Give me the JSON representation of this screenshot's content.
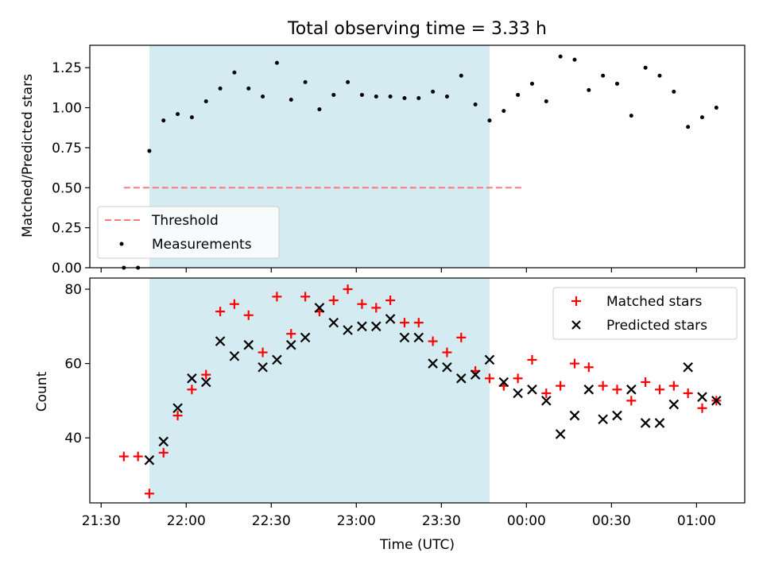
{
  "colors": {
    "shade": "#d4ebf1",
    "threshold": "#ff7b7b",
    "measurement": "#000000",
    "matched": "#ff0000",
    "predicted": "#000000"
  },
  "chart_data": [
    {
      "type": "scatter",
      "title": "Total observing time = 3.33 h",
      "xlabel": "",
      "ylabel": "Matched/Predicted stars",
      "ylim": [
        0,
        1.39
      ],
      "yticks": [
        "0.00",
        "0.25",
        "0.50",
        "0.75",
        "1.00",
        "1.25"
      ],
      "shaded_range": [
        "21:47",
        "23:47"
      ],
      "threshold": {
        "name": "Threshold",
        "y": 0.5,
        "x_range": [
          "21:38",
          "23:59"
        ]
      },
      "legend": {
        "placement": "lower-left",
        "entries": [
          "Threshold",
          "Measurements"
        ]
      },
      "series": [
        {
          "name": "Measurements",
          "x": [
            "21:38",
            "21:43",
            "21:47",
            "21:52",
            "21:57",
            "22:02",
            "22:07",
            "22:12",
            "22:17",
            "22:22",
            "22:27",
            "22:32",
            "22:37",
            "22:42",
            "22:47",
            "22:52",
            "22:57",
            "23:02",
            "23:07",
            "23:12",
            "23:17",
            "23:22",
            "23:27",
            "23:32",
            "23:37",
            "23:42",
            "23:47",
            "23:52",
            "23:57",
            "00:02",
            "00:07",
            "00:12",
            "00:17",
            "00:22",
            "00:27",
            "00:32",
            "00:37",
            "00:42",
            "00:47",
            "00:52",
            "00:57",
            "01:02",
            "01:07"
          ],
          "y": [
            0.0,
            0.0,
            0.73,
            0.92,
            0.96,
            0.94,
            1.04,
            1.12,
            1.22,
            1.12,
            1.07,
            1.28,
            1.05,
            1.16,
            0.99,
            1.08,
            1.16,
            1.08,
            1.07,
            1.07,
            1.06,
            1.06,
            1.1,
            1.07,
            1.2,
            1.02,
            0.92,
            0.98,
            1.08,
            1.15,
            1.04,
            1.32,
            1.3,
            1.11,
            1.2,
            1.15,
            0.95,
            1.25,
            1.2,
            1.1,
            0.88,
            0.94,
            1.0
          ]
        }
      ]
    },
    {
      "type": "scatter",
      "title": "",
      "xlabel": "Time (UTC)",
      "ylabel": "Count",
      "ylim": [
        22.5,
        83
      ],
      "yticks": [
        "40",
        "60",
        "80"
      ],
      "xticks": [
        "21:30",
        "22:00",
        "22:30",
        "23:00",
        "23:30",
        "00:00",
        "00:30",
        "01:00"
      ],
      "shaded_range": [
        "21:47",
        "23:47"
      ],
      "legend": {
        "placement": "upper-right",
        "entries": [
          "Matched stars",
          "Predicted stars"
        ]
      },
      "series": [
        {
          "name": "Matched stars",
          "x": [
            "21:38",
            "21:43",
            "21:47",
            "21:52",
            "21:57",
            "22:02",
            "22:07",
            "22:12",
            "22:17",
            "22:22",
            "22:27",
            "22:32",
            "22:37",
            "22:42",
            "22:47",
            "22:52",
            "22:57",
            "23:02",
            "23:07",
            "23:12",
            "23:17",
            "23:22",
            "23:27",
            "23:32",
            "23:37",
            "23:42",
            "23:47",
            "23:52",
            "23:57",
            "00:02",
            "00:07",
            "00:12",
            "00:17",
            "00:22",
            "00:27",
            "00:32",
            "00:37",
            "00:42",
            "00:47",
            "00:52",
            "00:57",
            "01:02",
            "01:07"
          ],
          "y": [
            35,
            35,
            25,
            36,
            46,
            53,
            57,
            74,
            76,
            73,
            63,
            78,
            68,
            78,
            74,
            77,
            80,
            76,
            75,
            77,
            71,
            71,
            66,
            63,
            67,
            58,
            56,
            54,
            56,
            61,
            52,
            54,
            60,
            59,
            54,
            53,
            50,
            55,
            53,
            54,
            52,
            48,
            50
          ]
        },
        {
          "name": "Predicted stars",
          "x": [
            "21:47",
            "21:52",
            "21:57",
            "22:02",
            "22:07",
            "22:12",
            "22:17",
            "22:22",
            "22:27",
            "22:32",
            "22:37",
            "22:42",
            "22:47",
            "22:52",
            "22:57",
            "23:02",
            "23:07",
            "23:12",
            "23:17",
            "23:22",
            "23:27",
            "23:32",
            "23:37",
            "23:42",
            "23:47",
            "23:52",
            "23:57",
            "00:02",
            "00:07",
            "00:12",
            "00:17",
            "00:22",
            "00:27",
            "00:32",
            "00:37",
            "00:42",
            "00:47",
            "00:52",
            "00:57",
            "01:02",
            "01:07"
          ],
          "y": [
            34,
            39,
            48,
            56,
            55,
            66,
            62,
            65,
            59,
            61,
            65,
            67,
            75,
            71,
            69,
            70,
            70,
            72,
            67,
            67,
            60,
            59,
            56,
            57,
            61,
            55,
            52,
            53,
            50,
            41,
            46,
            53,
            45,
            46,
            53,
            44,
            44,
            49,
            59,
            51,
            50
          ]
        }
      ]
    }
  ]
}
